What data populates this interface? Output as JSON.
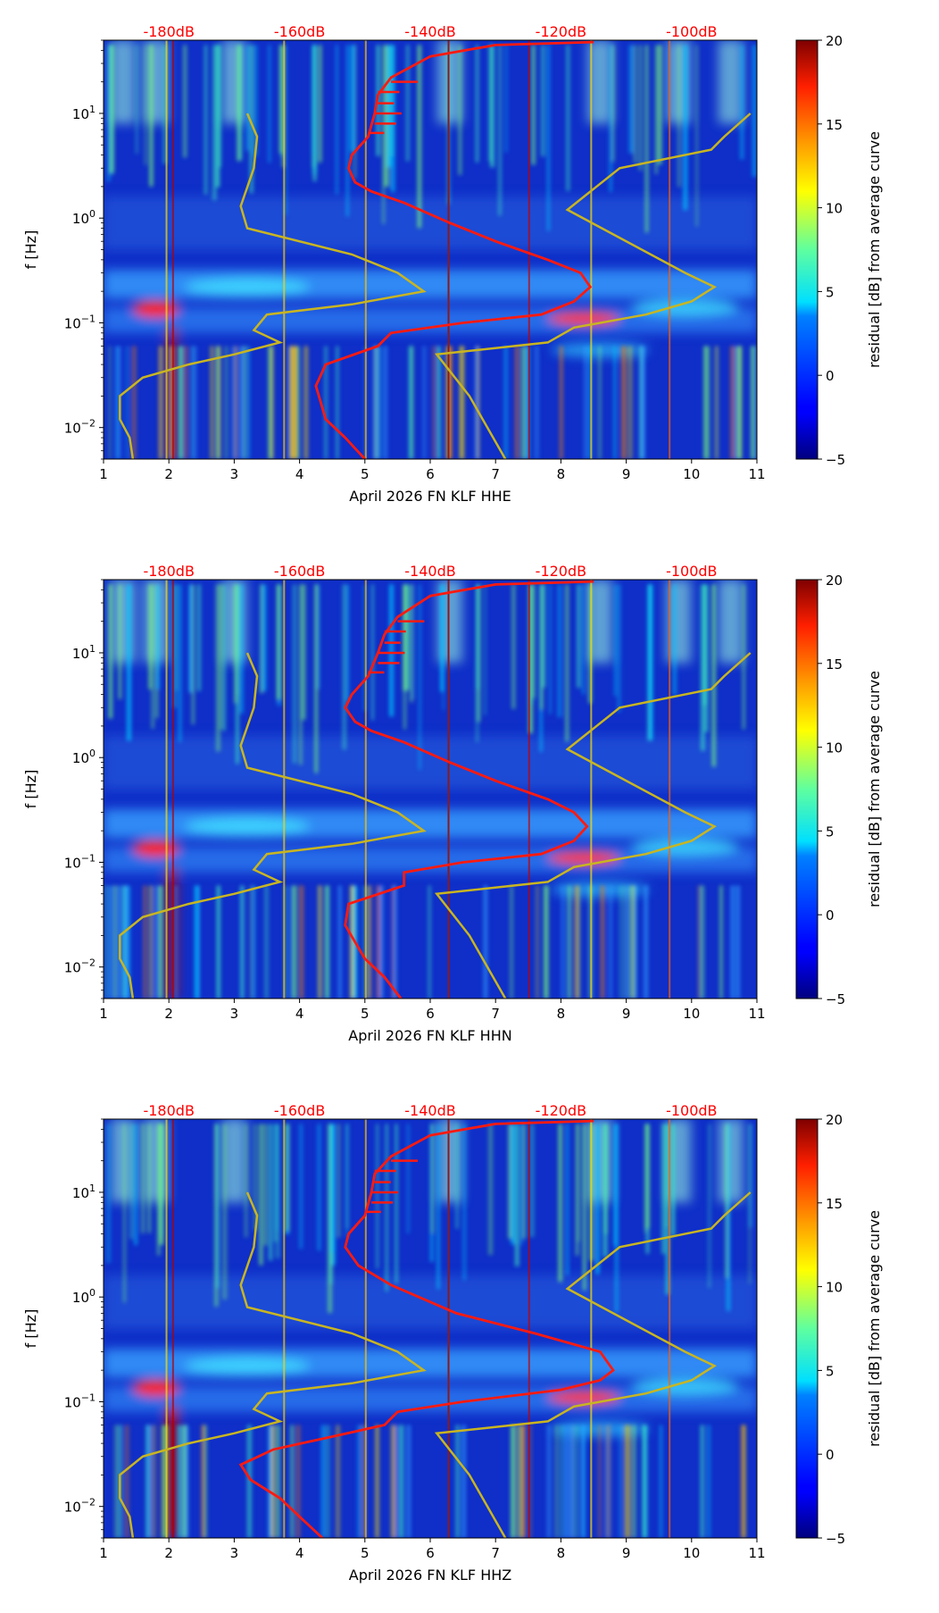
{
  "chart_data": [
    {
      "type": "heatmap",
      "channel": "HHE",
      "xlabel": "April 2026 FN KLF  HHE",
      "ylabel": "f [Hz]",
      "xlim": [
        1,
        11
      ],
      "xticks": [
        "1",
        "2",
        "3",
        "4",
        "5",
        "6",
        "7",
        "8",
        "9",
        "10",
        "11"
      ],
      "yscale": "log",
      "ylim": [
        0.005,
        50
      ],
      "yticks": [
        {
          "value": 0.01,
          "base": "10",
          "exp": "−2"
        },
        {
          "value": 0.1,
          "base": "10",
          "exp": "−1"
        },
        {
          "value": 1,
          "base": "10",
          "exp": "0"
        },
        {
          "value": 10,
          "base": "10",
          "exp": "1"
        }
      ],
      "top_axis_labels": [
        "-180dB",
        "-160dB",
        "-140dB",
        "-120dB",
        "-100dB"
      ],
      "top_axis_positions": [
        2,
        4,
        6,
        8,
        10
      ],
      "colorbar": {
        "label": "residual [dB] from average curve",
        "min": -5,
        "max": 20,
        "ticks": [
          "−5",
          "0",
          "5",
          "10",
          "15",
          "20"
        ]
      },
      "vertical_line_x": 6.28,
      "red_curve": [
        [
          5.0,
          0.005
        ],
        [
          4.7,
          0.008
        ],
        [
          4.4,
          0.012
        ],
        [
          4.25,
          0.025
        ],
        [
          4.4,
          0.04
        ],
        [
          5.2,
          0.06
        ],
        [
          5.4,
          0.08
        ],
        [
          6.5,
          0.1
        ],
        [
          7.7,
          0.12
        ],
        [
          8.2,
          0.16
        ],
        [
          8.45,
          0.22
        ],
        [
          8.3,
          0.3
        ],
        [
          7.8,
          0.4
        ],
        [
          7.0,
          0.6
        ],
        [
          6.3,
          0.9
        ],
        [
          5.6,
          1.4
        ],
        [
          5.1,
          1.8
        ],
        [
          4.85,
          2.2
        ],
        [
          4.75,
          3.0
        ],
        [
          4.8,
          4.0
        ],
        [
          5.05,
          6.0
        ],
        [
          5.15,
          10
        ],
        [
          5.2,
          15
        ],
        [
          5.4,
          22
        ],
        [
          6.0,
          35
        ],
        [
          7.0,
          45
        ],
        [
          8.5,
          48
        ]
      ],
      "yellow_curves": [
        [
          [
            1.45,
            0.005
          ],
          [
            1.4,
            0.008
          ],
          [
            1.25,
            0.012
          ],
          [
            1.25,
            0.02
          ],
          [
            1.6,
            0.03
          ],
          [
            2.3,
            0.04
          ],
          [
            3.0,
            0.05
          ],
          [
            3.7,
            0.065
          ],
          [
            3.3,
            0.085
          ],
          [
            3.5,
            0.12
          ],
          [
            4.8,
            0.15
          ],
          [
            5.9,
            0.2
          ],
          [
            5.5,
            0.3
          ],
          [
            4.8,
            0.45
          ],
          [
            3.2,
            0.8
          ],
          [
            3.1,
            1.3
          ],
          [
            3.3,
            3.0
          ],
          [
            3.35,
            6.0
          ],
          [
            3.2,
            10
          ]
        ],
        [
          [
            7.15,
            0.005
          ],
          [
            6.6,
            0.02
          ],
          [
            6.1,
            0.05
          ],
          [
            7.8,
            0.065
          ],
          [
            8.2,
            0.09
          ],
          [
            9.3,
            0.12
          ],
          [
            10.0,
            0.16
          ],
          [
            10.35,
            0.22
          ],
          [
            9.9,
            0.3
          ],
          [
            8.1,
            1.2
          ],
          [
            8.9,
            3.0
          ],
          [
            10.3,
            4.5
          ],
          [
            10.5,
            6.0
          ],
          [
            10.9,
            10
          ]
        ]
      ]
    },
    {
      "type": "heatmap",
      "channel": "HHN",
      "xlabel": "April 2026 FN KLF  HHN",
      "ylabel": "f [Hz]",
      "xlim": [
        1,
        11
      ],
      "xticks": [
        "1",
        "2",
        "3",
        "4",
        "5",
        "6",
        "7",
        "8",
        "9",
        "10",
        "11"
      ],
      "yscale": "log",
      "ylim": [
        0.005,
        50
      ],
      "yticks": [
        {
          "value": 0.01,
          "base": "10",
          "exp": "−2"
        },
        {
          "value": 0.1,
          "base": "10",
          "exp": "−1"
        },
        {
          "value": 1,
          "base": "10",
          "exp": "0"
        },
        {
          "value": 10,
          "base": "10",
          "exp": "1"
        }
      ],
      "top_axis_labels": [
        "-180dB",
        "-160dB",
        "-140dB",
        "-120dB",
        "-100dB"
      ],
      "top_axis_positions": [
        2,
        4,
        6,
        8,
        10
      ],
      "colorbar": {
        "label": "residual [dB] from average curve",
        "min": -5,
        "max": 20,
        "ticks": [
          "−5",
          "0",
          "5",
          "10",
          "15",
          "20"
        ]
      },
      "vertical_line_x": 6.28,
      "red_curve": [
        [
          5.55,
          0.005
        ],
        [
          5.3,
          0.008
        ],
        [
          5.0,
          0.012
        ],
        [
          4.7,
          0.025
        ],
        [
          4.75,
          0.04
        ],
        [
          5.6,
          0.06
        ],
        [
          5.6,
          0.08
        ],
        [
          6.5,
          0.1
        ],
        [
          7.7,
          0.12
        ],
        [
          8.2,
          0.16
        ],
        [
          8.4,
          0.22
        ],
        [
          8.2,
          0.3
        ],
        [
          7.8,
          0.4
        ],
        [
          7.0,
          0.6
        ],
        [
          6.3,
          0.9
        ],
        [
          5.6,
          1.4
        ],
        [
          5.1,
          1.8
        ],
        [
          4.85,
          2.2
        ],
        [
          4.7,
          3.0
        ],
        [
          4.8,
          4.0
        ],
        [
          5.05,
          6.0
        ],
        [
          5.2,
          10
        ],
        [
          5.3,
          15
        ],
        [
          5.5,
          22
        ],
        [
          6.0,
          35
        ],
        [
          7.0,
          45
        ],
        [
          8.5,
          48
        ]
      ],
      "yellow_curves": [
        [
          [
            1.45,
            0.005
          ],
          [
            1.4,
            0.008
          ],
          [
            1.25,
            0.012
          ],
          [
            1.25,
            0.02
          ],
          [
            1.6,
            0.03
          ],
          [
            2.3,
            0.04
          ],
          [
            3.0,
            0.05
          ],
          [
            3.7,
            0.065
          ],
          [
            3.3,
            0.085
          ],
          [
            3.5,
            0.12
          ],
          [
            4.8,
            0.15
          ],
          [
            5.9,
            0.2
          ],
          [
            5.5,
            0.3
          ],
          [
            4.8,
            0.45
          ],
          [
            3.2,
            0.8
          ],
          [
            3.1,
            1.3
          ],
          [
            3.3,
            3.0
          ],
          [
            3.35,
            6.0
          ],
          [
            3.2,
            10
          ]
        ],
        [
          [
            7.15,
            0.005
          ],
          [
            6.6,
            0.02
          ],
          [
            6.1,
            0.05
          ],
          [
            7.8,
            0.065
          ],
          [
            8.2,
            0.09
          ],
          [
            9.3,
            0.12
          ],
          [
            10.0,
            0.16
          ],
          [
            10.35,
            0.22
          ],
          [
            9.9,
            0.3
          ],
          [
            8.1,
            1.2
          ],
          [
            8.9,
            3.0
          ],
          [
            10.3,
            4.5
          ],
          [
            10.5,
            6.0
          ],
          [
            10.9,
            10
          ]
        ]
      ]
    },
    {
      "type": "heatmap",
      "channel": "HHZ",
      "xlabel": "April 2026 FN KLF  HHZ",
      "ylabel": "f [Hz]",
      "xlim": [
        1,
        11
      ],
      "xticks": [
        "1",
        "2",
        "3",
        "4",
        "5",
        "6",
        "7",
        "8",
        "9",
        "10",
        "11"
      ],
      "yscale": "log",
      "ylim": [
        0.005,
        50
      ],
      "yticks": [
        {
          "value": 0.01,
          "base": "10",
          "exp": "−2"
        },
        {
          "value": 0.1,
          "base": "10",
          "exp": "−1"
        },
        {
          "value": 1,
          "base": "10",
          "exp": "0"
        },
        {
          "value": 10,
          "base": "10",
          "exp": "1"
        }
      ],
      "top_axis_labels": [
        "-180dB",
        "-160dB",
        "-140dB",
        "-120dB",
        "-100dB"
      ],
      "top_axis_positions": [
        2,
        4,
        6,
        8,
        10
      ],
      "colorbar": {
        "label": "residual [dB] from average curve",
        "min": -5,
        "max": 20,
        "ticks": [
          "−5",
          "0",
          "5",
          "10",
          "15",
          "20"
        ]
      },
      "vertical_line_x": 6.28,
      "red_curve": [
        [
          4.35,
          0.005
        ],
        [
          4.0,
          0.008
        ],
        [
          3.7,
          0.012
        ],
        [
          3.25,
          0.018
        ],
        [
          3.1,
          0.025
        ],
        [
          3.6,
          0.035
        ],
        [
          4.4,
          0.045
        ],
        [
          5.3,
          0.06
        ],
        [
          5.5,
          0.08
        ],
        [
          6.5,
          0.1
        ],
        [
          8.0,
          0.13
        ],
        [
          8.6,
          0.16
        ],
        [
          8.8,
          0.2
        ],
        [
          8.6,
          0.3
        ],
        [
          7.6,
          0.45
        ],
        [
          6.4,
          0.7
        ],
        [
          5.4,
          1.3
        ],
        [
          4.9,
          2.0
        ],
        [
          4.7,
          3.0
        ],
        [
          4.75,
          4.0
        ],
        [
          5.0,
          6.0
        ],
        [
          5.1,
          10
        ],
        [
          5.15,
          15
        ],
        [
          5.4,
          22
        ],
        [
          6.0,
          35
        ],
        [
          7.0,
          45
        ],
        [
          8.5,
          48
        ]
      ],
      "yellow_curves": [
        [
          [
            1.45,
            0.005
          ],
          [
            1.4,
            0.008
          ],
          [
            1.25,
            0.012
          ],
          [
            1.25,
            0.02
          ],
          [
            1.6,
            0.03
          ],
          [
            2.3,
            0.04
          ],
          [
            3.0,
            0.05
          ],
          [
            3.7,
            0.065
          ],
          [
            3.3,
            0.085
          ],
          [
            3.5,
            0.12
          ],
          [
            4.8,
            0.15
          ],
          [
            5.9,
            0.2
          ],
          [
            5.5,
            0.3
          ],
          [
            4.8,
            0.45
          ],
          [
            3.2,
            0.8
          ],
          [
            3.1,
            1.3
          ],
          [
            3.3,
            3.0
          ],
          [
            3.35,
            6.0
          ],
          [
            3.2,
            10
          ]
        ],
        [
          [
            7.15,
            0.005
          ],
          [
            6.6,
            0.02
          ],
          [
            6.1,
            0.05
          ],
          [
            7.8,
            0.065
          ],
          [
            8.2,
            0.09
          ],
          [
            9.3,
            0.12
          ],
          [
            10.0,
            0.16
          ],
          [
            10.35,
            0.22
          ],
          [
            9.9,
            0.3
          ],
          [
            8.1,
            1.2
          ],
          [
            8.9,
            3.0
          ],
          [
            10.3,
            4.5
          ],
          [
            10.5,
            6.0
          ],
          [
            10.9,
            10
          ]
        ]
      ]
    }
  ],
  "colors": {
    "heat_background": "#0f2fc8",
    "red_curve": "#ff1a10",
    "yellow_curve": "#c9b520",
    "vertical_line": "#8b1a1a",
    "top_label": "#ff0000"
  }
}
